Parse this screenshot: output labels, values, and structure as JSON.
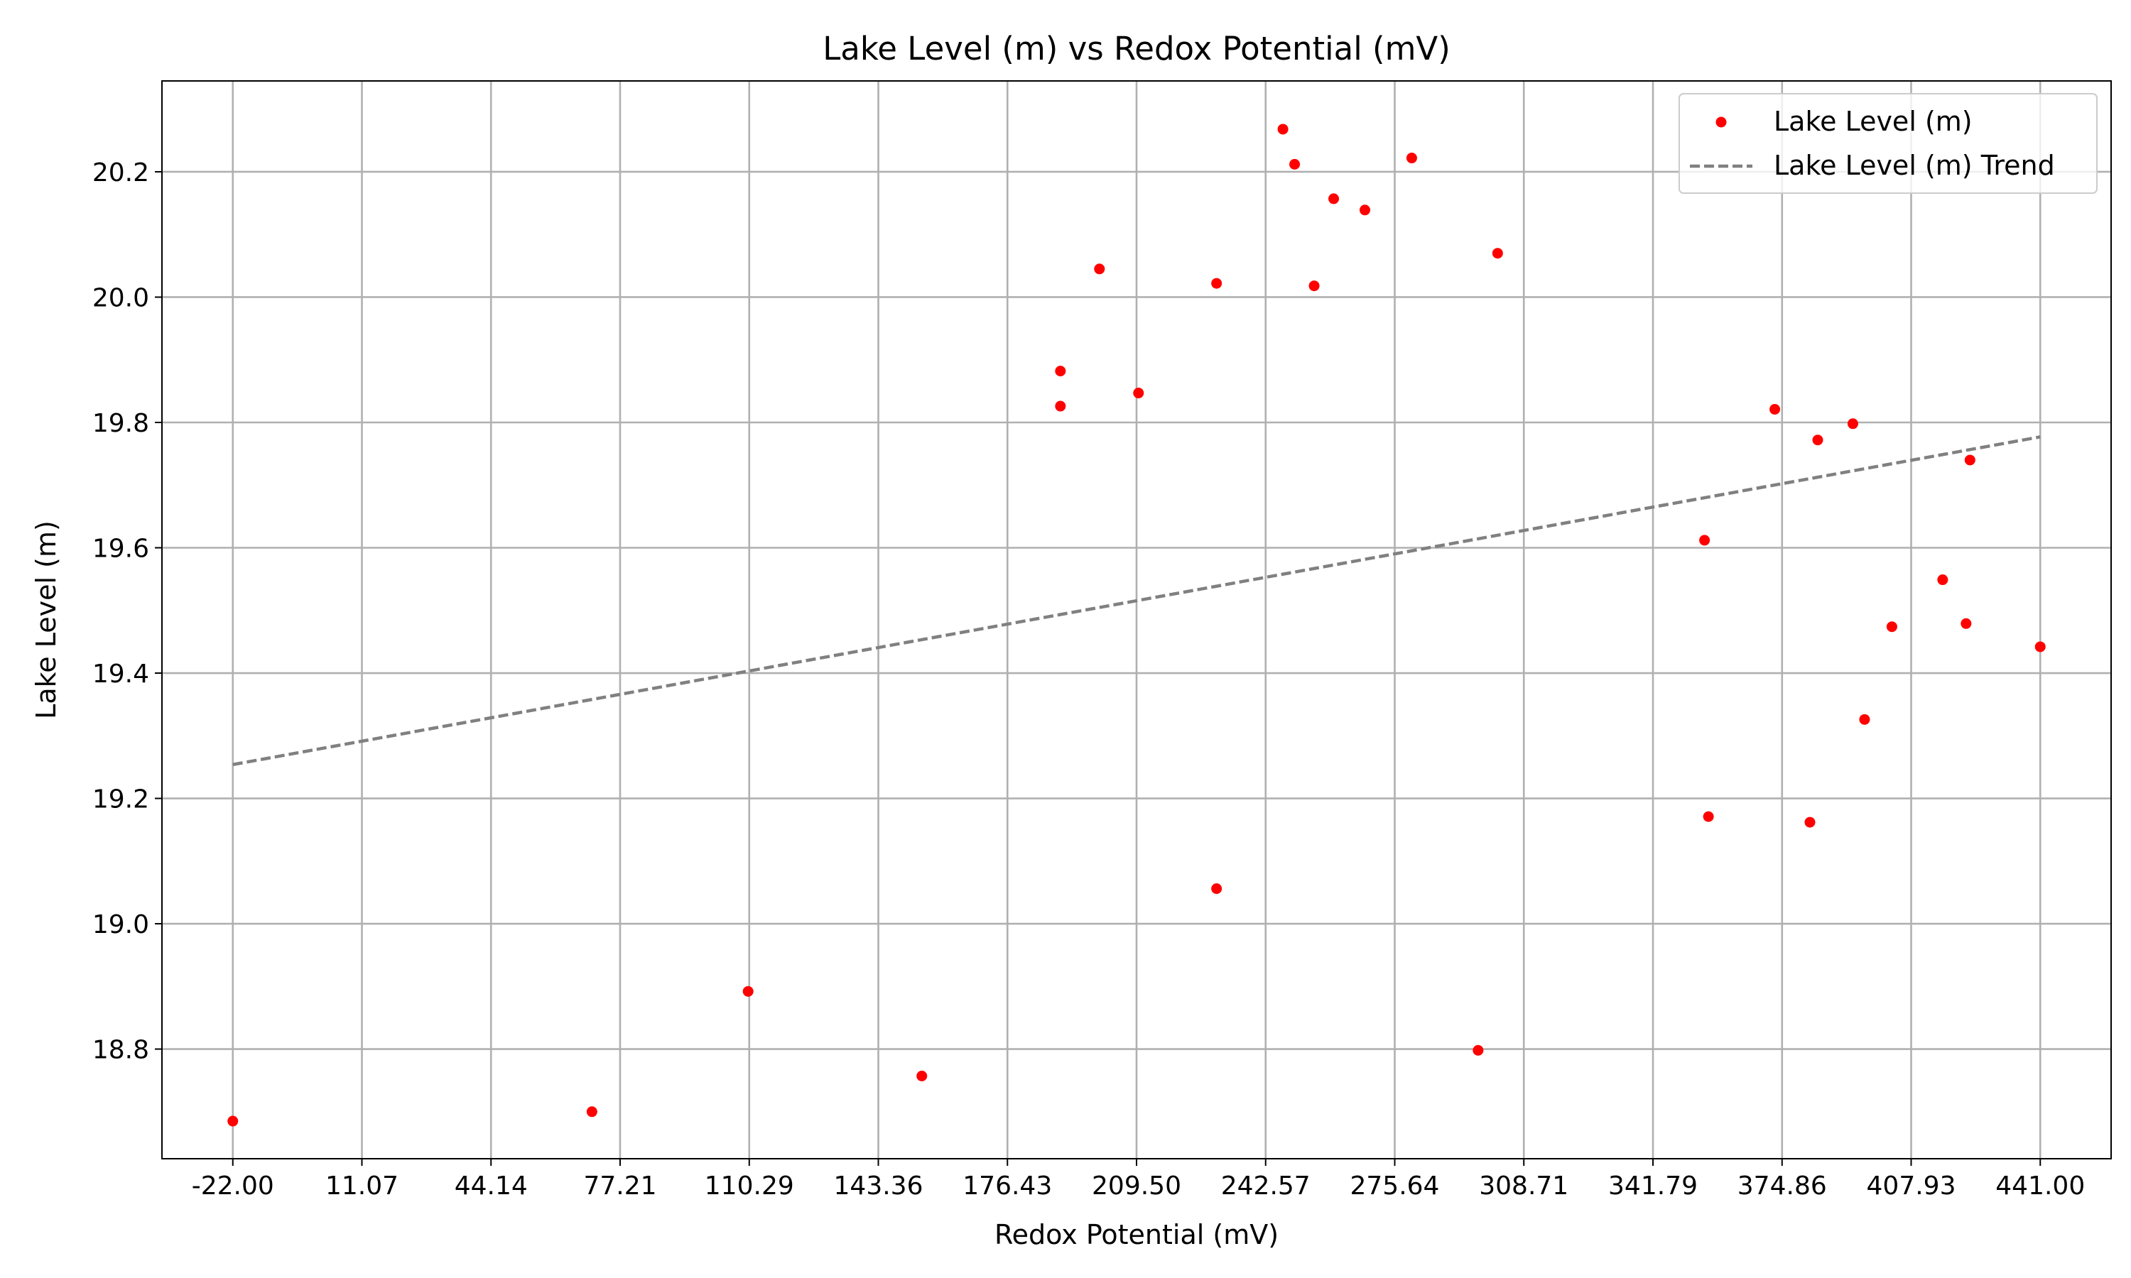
{
  "chart_data": {
    "type": "scatter",
    "title": "Lake Level (m) vs Redox Potential (mV)",
    "xlabel": "Redox Potential (mV)",
    "ylabel": "Lake Level (m)",
    "xlim": [
      -40.15,
      459.15
    ],
    "ylim": [
      18.625,
      20.345
    ],
    "x_ticks": [
      "-22.00",
      "11.07",
      "44.14",
      "77.21",
      "110.29",
      "143.36",
      "176.43",
      "209.50",
      "242.57",
      "275.64",
      "308.71",
      "341.79",
      "374.86",
      "407.93",
      "441.00"
    ],
    "y_ticks": [
      "18.8",
      "19.0",
      "19.2",
      "19.4",
      "19.6",
      "19.8",
      "20.0",
      "20.2"
    ],
    "grid": true,
    "legend_position": "top-right",
    "series": [
      {
        "name": "Lake Level (m)",
        "kind": "scatter",
        "color": "#ff0000",
        "points": [
          {
            "x": -22.0,
            "y": 18.685
          },
          {
            "x": 70.0,
            "y": 18.7
          },
          {
            "x": 110.0,
            "y": 18.892
          },
          {
            "x": 154.5,
            "y": 18.757
          },
          {
            "x": 190.0,
            "y": 19.882
          },
          {
            "x": 190.0,
            "y": 19.826
          },
          {
            "x": 200.0,
            "y": 20.045
          },
          {
            "x": 210.0,
            "y": 19.847
          },
          {
            "x": 230.0,
            "y": 20.022
          },
          {
            "x": 230.0,
            "y": 19.056
          },
          {
            "x": 247.0,
            "y": 20.268
          },
          {
            "x": 250.0,
            "y": 20.212
          },
          {
            "x": 255.0,
            "y": 20.018
          },
          {
            "x": 260.0,
            "y": 20.157
          },
          {
            "x": 268.0,
            "y": 20.139
          },
          {
            "x": 280.0,
            "y": 20.222
          },
          {
            "x": 297.0,
            "y": 18.798
          },
          {
            "x": 302.0,
            "y": 20.07
          },
          {
            "x": 355.0,
            "y": 19.612
          },
          {
            "x": 356.0,
            "y": 19.171
          },
          {
            "x": 373.0,
            "y": 19.821
          },
          {
            "x": 382.0,
            "y": 19.162
          },
          {
            "x": 384.0,
            "y": 19.772
          },
          {
            "x": 393.0,
            "y": 19.798
          },
          {
            "x": 396.0,
            "y": 19.326
          },
          {
            "x": 403.0,
            "y": 19.474
          },
          {
            "x": 416.0,
            "y": 19.549
          },
          {
            "x": 422.0,
            "y": 19.479
          },
          {
            "x": 423.0,
            "y": 19.74
          },
          {
            "x": 441.0,
            "y": 19.442
          }
        ]
      },
      {
        "name": "Lake Level (m) Trend",
        "kind": "line",
        "dashed": true,
        "color": "#808080",
        "points": [
          {
            "x": -22.0,
            "y": 19.254
          },
          {
            "x": 441.0,
            "y": 19.777
          }
        ]
      }
    ]
  }
}
